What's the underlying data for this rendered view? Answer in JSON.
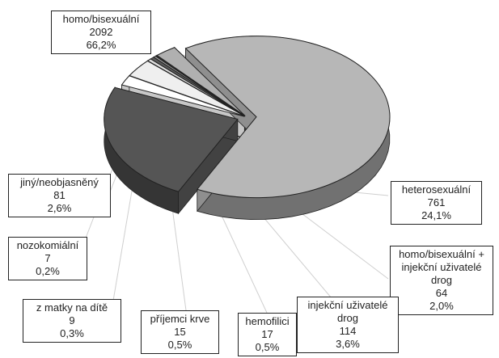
{
  "chart_data": {
    "type": "pie",
    "style": "3d-exploded",
    "title": "",
    "slices": [
      {
        "label": "homo/bisexuální",
        "count": "2092",
        "percent": "66,2%",
        "value": 66.2,
        "color": "#b7b7b7"
      },
      {
        "label": "heterosexuální",
        "count": "761",
        "percent": "24,1%",
        "value": 24.1,
        "color": "#555555"
      },
      {
        "label": "homo/bisexuální + injekční uživatelé drog",
        "label_lines": [
          "homo/bisexuální +",
          "injekční uživatelé",
          "drog"
        ],
        "count": "64",
        "percent": "2,0%",
        "value": 2.0,
        "color": "#ffffff"
      },
      {
        "label": "injekční uživatelé drog",
        "label_lines": [
          "injekční uživatelé",
          "drog"
        ],
        "count": "114",
        "percent": "3,6%",
        "value": 3.6,
        "color": "#efefef"
      },
      {
        "label": "hemofilici",
        "count": "17",
        "percent": "0,5%",
        "value": 0.5,
        "color": "#dddddd"
      },
      {
        "label": "příjemci krve",
        "count": "15",
        "percent": "0,5%",
        "value": 0.5,
        "color": "#5a5a5a"
      },
      {
        "label": "z matky na dítě",
        "count": "9",
        "percent": "0,3%",
        "value": 0.3,
        "color": "#aaaaaa"
      },
      {
        "label": "nozokomiální",
        "count": "7",
        "percent": "0,2%",
        "value": 0.2,
        "color": "#333333"
      },
      {
        "label": "jiný/neobjasněný",
        "count": "81",
        "percent": "2,6%",
        "value": 2.6,
        "color": "#b0b0b0"
      }
    ]
  }
}
